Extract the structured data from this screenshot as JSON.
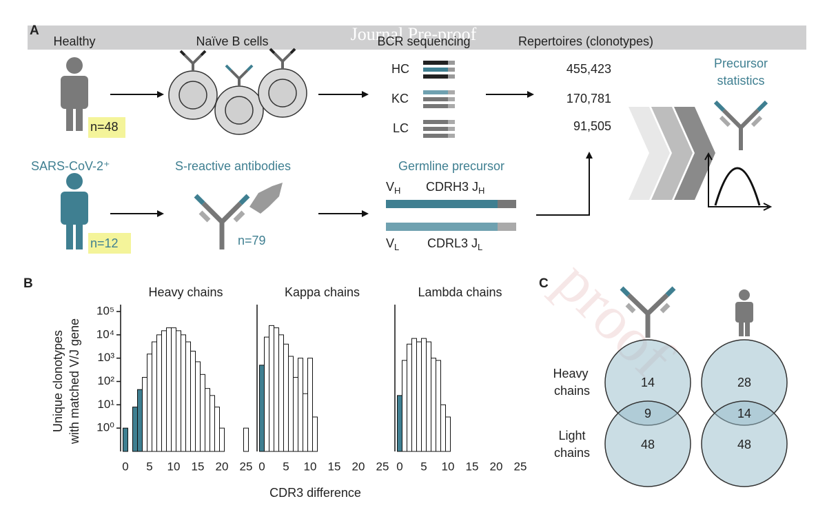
{
  "panel_labels": [
    "A",
    "B",
    "C"
  ],
  "watermark": [
    "Journal Pre-proof",
    "proof"
  ],
  "panel_a": {
    "healthy": "Healthy",
    "naive": "Naïve B cells",
    "bcr": "BCR sequencing",
    "repertoires": "Repertoires (clonotypes)",
    "healthy_n": "n=48",
    "chains": [
      {
        "label": "HC",
        "count": "455,423"
      },
      {
        "label": "KC",
        "count": "170,781"
      },
      {
        "label": "LC",
        "count": "91,505"
      }
    ],
    "precursor_stats": [
      "Precursor",
      "statistics"
    ],
    "sars": "SARS-CoV-2⁺",
    "s_reactive": "S-reactive antibodies",
    "sars_n": "n=12",
    "antibodies_n": "n=79",
    "germline": "Germline precursor",
    "heavy_labels": [
      {
        "main": "V",
        "sub": "H"
      },
      {
        "main": "CDRH3 J",
        "sub": "H"
      }
    ],
    "light_labels": [
      {
        "main": "V",
        "sub": "L"
      },
      {
        "main": "CDRL3 J",
        "sub": "L"
      }
    ]
  },
  "chart_data": [
    {
      "type": "histogram",
      "title": "Heavy chains",
      "ylabel": [
        "Unique clonotypes",
        "with matched V/J gene"
      ],
      "bins": [
        -0.5,
        0.5,
        1.5,
        2.5,
        3.5,
        4.5,
        5.5,
        6.5,
        7.5,
        8.5,
        9.5,
        10.5,
        11.5,
        12.5,
        13.5,
        14.5,
        15.5,
        16.5,
        17.5,
        18.5,
        19.5,
        20.5,
        21.5,
        22.5,
        23.5,
        24.5,
        25.5
      ],
      "values": [
        1,
        null,
        8,
        45,
        150,
        1500,
        5000,
        10000,
        15000,
        20000,
        20000,
        15000,
        10000,
        5000,
        2000,
        700,
        200,
        50,
        25,
        8,
        1,
        null,
        null,
        null,
        null,
        1
      ],
      "colors": [
        "#3f7f91",
        "#ffffff",
        "#3f7f91",
        "#3f7f91",
        "#ffffff",
        "#ffffff",
        "#ffffff",
        "#ffffff",
        "#ffffff",
        "#ffffff",
        "#ffffff",
        "#ffffff",
        "#ffffff",
        "#ffffff",
        "#ffffff",
        "#ffffff",
        "#ffffff",
        "#ffffff",
        "#ffffff",
        "#ffffff",
        "#ffffff",
        "#ffffff",
        "#ffffff",
        "#ffffff",
        "#ffffff",
        "#ffffff"
      ],
      "log_y": true,
      "xlim": [
        -1,
        26
      ],
      "ylim": [
        0.1,
        100000
      ],
      "xticks": [
        0,
        5,
        10,
        15,
        20,
        25
      ],
      "yticks": [
        {
          "value": 1,
          "label": "10⁰"
        },
        {
          "value": 10,
          "label": "10¹"
        },
        {
          "value": 100,
          "label": "10²"
        },
        {
          "value": 1000,
          "label": "10³"
        },
        {
          "value": 10000,
          "label": "10⁴"
        },
        {
          "value": 100000,
          "label": "10⁵"
        }
      ]
    },
    {
      "type": "histogram",
      "title": "Kappa chains",
      "xlabel": "CDR3 difference",
      "bins": [
        -0.5,
        0.5,
        1.5,
        2.5,
        3.5,
        4.5,
        5.5,
        6.5,
        7.5,
        8.5,
        9.5,
        10.5,
        11.5,
        12.5,
        13.5,
        14.5,
        15.5,
        16.5,
        17.5,
        18.5,
        19.5,
        20.5,
        21.5,
        22.5,
        23.5,
        24.5,
        25.5
      ],
      "values": [
        500,
        8000,
        25000,
        20000,
        10000,
        4000,
        1200,
        150,
        1000,
        30,
        1000,
        3,
        null,
        null,
        null,
        null,
        null,
        null,
        null,
        null,
        null,
        null,
        null,
        null,
        null,
        null
      ],
      "colors": [
        "#3f7f91",
        "#ffffff",
        "#ffffff",
        "#ffffff",
        "#ffffff",
        "#ffffff",
        "#ffffff",
        "#ffffff",
        "#ffffff",
        "#ffffff",
        "#ffffff",
        "#ffffff",
        "#ffffff",
        "#ffffff",
        "#ffffff",
        "#ffffff",
        "#ffffff",
        "#ffffff",
        "#ffffff",
        "#ffffff",
        "#ffffff",
        "#ffffff",
        "#ffffff",
        "#ffffff",
        "#ffffff",
        "#ffffff"
      ],
      "log_y": true,
      "xlim": [
        -1,
        26
      ],
      "ylim": [
        0.1,
        100000
      ],
      "xticks": [
        0,
        5,
        10,
        15,
        20,
        25
      ]
    },
    {
      "type": "histogram",
      "title": "Lambda chains",
      "bins": [
        -0.5,
        0.5,
        1.5,
        2.5,
        3.5,
        4.5,
        5.5,
        6.5,
        7.5,
        8.5,
        9.5,
        10.5,
        11.5,
        12.5,
        13.5,
        14.5,
        15.5,
        16.5,
        17.5,
        18.5,
        19.5,
        20.5,
        21.5,
        22.5,
        23.5,
        24.5,
        25.5
      ],
      "values": [
        25,
        800,
        4000,
        7000,
        5000,
        7000,
        5000,
        1000,
        800,
        10,
        3,
        null,
        null,
        null,
        null,
        null,
        null,
        null,
        null,
        null,
        null,
        null,
        null,
        null,
        null,
        null
      ],
      "colors": [
        "#3f7f91",
        "#ffffff",
        "#ffffff",
        "#ffffff",
        "#ffffff",
        "#ffffff",
        "#ffffff",
        "#ffffff",
        "#ffffff",
        "#ffffff",
        "#ffffff",
        "#ffffff",
        "#ffffff",
        "#ffffff",
        "#ffffff",
        "#ffffff",
        "#ffffff",
        "#ffffff",
        "#ffffff",
        "#ffffff",
        "#ffffff",
        "#ffffff",
        "#ffffff",
        "#ffffff",
        "#ffffff",
        "#ffffff"
      ],
      "log_y": true,
      "xlim": [
        -1,
        26
      ],
      "ylim": [
        0.1,
        100000
      ],
      "xticks": [
        0,
        5,
        10,
        15,
        20,
        25
      ]
    }
  ],
  "panel_c": {
    "row_labels": [
      [
        "Heavy",
        "chains"
      ],
      [
        "Light",
        "chains"
      ]
    ],
    "venns": [
      {
        "heavy": 14,
        "overlap": 9,
        "light": 48
      },
      {
        "heavy": 28,
        "overlap": 14,
        "light": 48
      }
    ]
  }
}
